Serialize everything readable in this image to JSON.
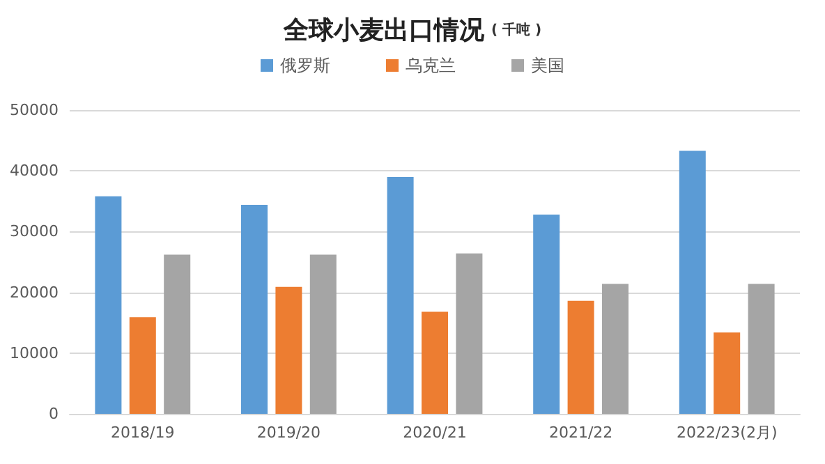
{
  "chart_data": {
    "type": "bar",
    "title": "全球小麦出口情况",
    "subtitle": "( 千吨 )",
    "categories": [
      "2018/19",
      "2019/20",
      "2020/21",
      "2021/22",
      "2022/23(2月)"
    ],
    "series": [
      {
        "name": "俄罗斯",
        "color": "#5b9bd5",
        "values": [
          35800,
          34400,
          39000,
          32800,
          43300
        ]
      },
      {
        "name": "乌克兰",
        "color": "#ed7d31",
        "values": [
          15900,
          20900,
          16800,
          18600,
          13400
        ]
      },
      {
        "name": "美国",
        "color": "#a5a5a5",
        "values": [
          26200,
          26200,
          26400,
          21400,
          21400
        ]
      }
    ],
    "ylim": [
      0,
      50000
    ],
    "yticks": [
      0,
      10000,
      20000,
      30000,
      40000,
      50000
    ],
    "grid": "y",
    "legend": "top"
  }
}
